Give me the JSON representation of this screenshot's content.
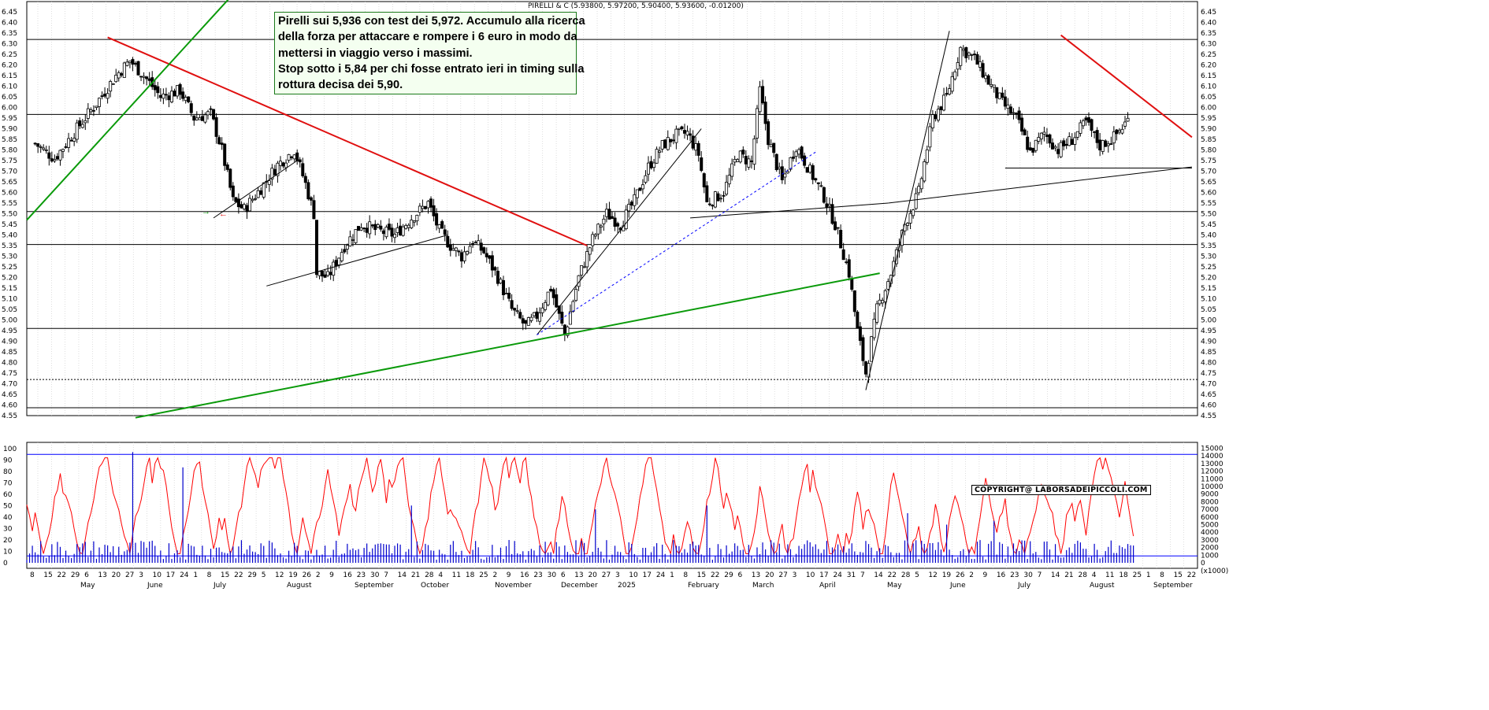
{
  "header": {
    "instrument": "PIRELLI & C",
    "ohlc": "(5.93800, 5.97200, 5.90400, 5.93600, -0.01200)"
  },
  "note": {
    "lines": [
      "Pirelli sui 5,936 con test dei 5,972. Accumulo alla ricerca",
      "della forza per attaccare e rompere i 6 euro in modo da",
      "mettersi in viaggio verso i massimi.",
      "Stop sotto i 5,84 per chi fosse entrato ieri in timing sulla",
      "rottura decisa dei 5,90."
    ]
  },
  "copyright": "COPYRIGHT@ LABORSADEIPICCOLI.COM",
  "colors": {
    "price": "#000000",
    "red_trend": "#e01010",
    "green_trend": "#0a9a0a",
    "oscillator": "#ff0000",
    "volume": "#0000cc",
    "levels": "#000000",
    "blue_levels": "#0000ff"
  },
  "chart_data": {
    "type": "candlestick",
    "price_axis": {
      "min": 4.55,
      "max": 6.45,
      "step": 0.05,
      "ticks": [
        "6.45",
        "6.40",
        "6.35",
        "6.30",
        "6.25",
        "6.20",
        "6.15",
        "6.10",
        "6.05",
        "6.00",
        "5.95",
        "5.90",
        "5.85",
        "5.80",
        "5.75",
        "5.70",
        "5.65",
        "5.60",
        "5.55",
        "5.50",
        "5.45",
        "5.40",
        "5.35",
        "5.30",
        "5.25",
        "5.20",
        "5.15",
        "5.10",
        "5.05",
        "5.00",
        "4.95",
        "4.90",
        "4.85",
        "4.80",
        "4.75",
        "4.70",
        "4.65",
        "4.60",
        "4.55"
      ]
    },
    "horizontal_levels": [
      6.32,
      5.967,
      5.51,
      5.355,
      4.96,
      4.587
    ],
    "dotted_levels": [
      4.72
    ],
    "series_close_path": [
      [
        3,
        5.83
      ],
      [
        10,
        5.76
      ],
      [
        18,
        5.9
      ],
      [
        25,
        6.02
      ],
      [
        32,
        6.15
      ],
      [
        37,
        6.22
      ],
      [
        42,
        6.15
      ],
      [
        48,
        6.05
      ],
      [
        55,
        6.08
      ],
      [
        60,
        5.95
      ],
      [
        66,
        5.97
      ],
      [
        70,
        5.8
      ],
      [
        74,
        5.56
      ],
      [
        78,
        5.52
      ],
      [
        84,
        5.62
      ],
      [
        90,
        5.73
      ],
      [
        96,
        5.8
      ],
      [
        100,
        5.64
      ],
      [
        103,
        5.5
      ],
      [
        104,
        5.22
      ],
      [
        108,
        5.2
      ],
      [
        114,
        5.35
      ],
      [
        120,
        5.45
      ],
      [
        126,
        5.42
      ],
      [
        132,
        5.4
      ],
      [
        138,
        5.48
      ],
      [
        144,
        5.55
      ],
      [
        148,
        5.42
      ],
      [
        152,
        5.35
      ],
      [
        156,
        5.3
      ],
      [
        160,
        5.37
      ],
      [
        164,
        5.32
      ],
      [
        169,
        5.2
      ],
      [
        174,
        5.05
      ],
      [
        179,
        4.97
      ],
      [
        183,
        5.02
      ],
      [
        188,
        5.15
      ],
      [
        193,
        4.93
      ],
      [
        198,
        5.2
      ],
      [
        203,
        5.38
      ],
      [
        208,
        5.5
      ],
      [
        213,
        5.45
      ],
      [
        218,
        5.56
      ],
      [
        223,
        5.72
      ],
      [
        228,
        5.82
      ],
      [
        233,
        5.87
      ],
      [
        237,
        5.88
      ],
      [
        241,
        5.78
      ],
      [
        244,
        5.55
      ],
      [
        250,
        5.6
      ],
      [
        255,
        5.78
      ],
      [
        260,
        5.74
      ],
      [
        263,
        6.08
      ],
      [
        266,
        5.85
      ],
      [
        271,
        5.65
      ],
      [
        276,
        5.82
      ],
      [
        281,
        5.7
      ],
      [
        286,
        5.58
      ],
      [
        290,
        5.45
      ],
      [
        295,
        5.22
      ],
      [
        298,
        4.95
      ],
      [
        301,
        4.75
      ],
      [
        305,
        5.05
      ],
      [
        310,
        5.22
      ],
      [
        315,
        5.45
      ],
      [
        320,
        5.6
      ],
      [
        325,
        5.95
      ],
      [
        330,
        6.05
      ],
      [
        335,
        6.28
      ],
      [
        340,
        6.23
      ],
      [
        345,
        6.12
      ],
      [
        350,
        6.02
      ],
      [
        355,
        5.95
      ],
      [
        360,
        5.79
      ],
      [
        365,
        5.88
      ],
      [
        370,
        5.8
      ],
      [
        375,
        5.85
      ],
      [
        380,
        5.93
      ],
      [
        385,
        5.82
      ],
      [
        390,
        5.86
      ],
      [
        395,
        5.94
      ]
    ],
    "trendlines": [
      {
        "color": "red",
        "from": [
          29,
          6.33
        ],
        "to": [
          201,
          5.35
        ]
      },
      {
        "color": "red",
        "from": [
          371,
          6.34
        ],
        "to": [
          418,
          5.86
        ]
      },
      {
        "color": "green",
        "from": [
          0,
          5.47
        ],
        "to": [
          78,
          6.59
        ]
      },
      {
        "color": "green",
        "from": [
          39,
          4.54
        ],
        "to": [
          306,
          5.22
        ]
      },
      {
        "color": "black",
        "from": [
          67,
          5.48
        ],
        "to": [
          97,
          5.75
        ]
      },
      {
        "color": "black",
        "from": [
          86,
          5.16
        ],
        "to": [
          151,
          5.4
        ]
      },
      {
        "color": "black",
        "from": [
          183,
          4.93
        ],
        "to": [
          242,
          5.9
        ]
      },
      {
        "color": "black",
        "from": [
          238,
          5.48
        ],
        "to": [
          309,
          5.55
        ]
      },
      {
        "color": "black",
        "from": [
          309,
          5.55
        ],
        "to": [
          418,
          5.72
        ]
      },
      {
        "color": "black",
        "from": [
          301,
          4.67
        ],
        "to": [
          331,
          6.36
        ]
      },
      {
        "color": "black",
        "from": [
          351,
          5.715
        ],
        "to": [
          418,
          5.715
        ]
      },
      {
        "color": "blue_dotted",
        "from": [
          183,
          4.93
        ],
        "to": [
          283,
          5.79
        ]
      }
    ],
    "oscillator_axis": {
      "min": 0,
      "max": 100,
      "ticks": [
        "100",
        "90",
        "80",
        "70",
        "60",
        "50",
        "40",
        "30",
        "20",
        "10",
        "0"
      ]
    },
    "oscillator_levels": [
      95,
      6
    ],
    "volume_axis": {
      "ticks": [
        "15000",
        "14000",
        "13000",
        "12000",
        "11000",
        "10000",
        "9000",
        "8000",
        "7000",
        "6000",
        "5000",
        "4000",
        "3000",
        "2000",
        "1000",
        "0"
      ],
      "unit": "x1000"
    },
    "volume_spikes": [
      [
        38,
        14500
      ],
      [
        56,
        12500
      ],
      [
        138,
        7500
      ],
      [
        204,
        7000
      ],
      [
        244,
        7500
      ],
      [
        316,
        6500
      ],
      [
        330,
        5000
      ],
      [
        347,
        5500
      ]
    ],
    "x_axis": {
      "day_ticks": [
        "8",
        "15",
        "22",
        "29",
        "6",
        "13",
        "20",
        "27",
        "3",
        "10",
        "17",
        "24",
        "1",
        "8",
        "15",
        "22",
        "29",
        "5",
        "12",
        "19",
        "26",
        "2",
        "9",
        "16",
        "23",
        "30",
        "7",
        "14",
        "21",
        "28",
        "4",
        "11",
        "18",
        "25",
        "2",
        "9",
        "16",
        "23",
        "30",
        "6",
        "13",
        "20",
        "27",
        "3",
        "10",
        "17",
        "24",
        "1",
        "8",
        "15",
        "22",
        "29",
        "6",
        "13",
        "20",
        "27",
        "3",
        "10",
        "17",
        "24",
        "31",
        "7",
        "14",
        "22",
        "28",
        "5",
        "12",
        "19",
        "26",
        "2",
        "9",
        "16",
        "23",
        "30",
        "7",
        "14",
        "21",
        "28",
        "4",
        "11",
        "18",
        "25",
        "1",
        "8",
        "15",
        "22"
      ],
      "months": [
        "May",
        "June",
        "July",
        "August",
        "September",
        "October",
        "November",
        "December",
        "2025",
        "February",
        "March",
        "April",
        "May",
        "June",
        "July",
        "August",
        "September"
      ]
    }
  }
}
